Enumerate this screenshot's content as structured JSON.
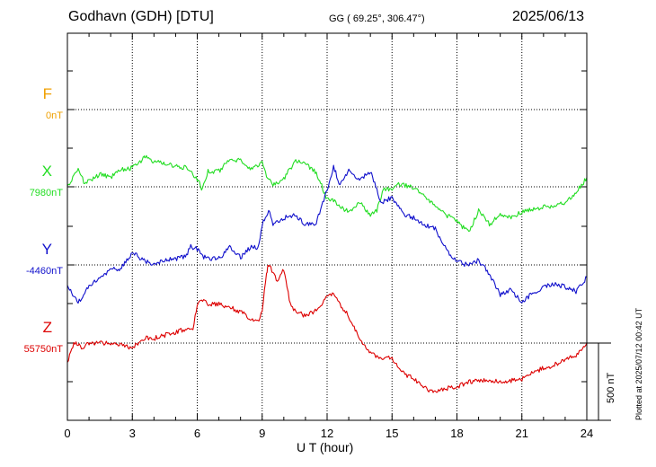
{
  "header": {
    "station": "Godhavn (GDH)  [DTU]",
    "coords": "GG ( 69.25°, 306.47°)",
    "date": "2025/06/13"
  },
  "footer": {
    "plotted": "Plotted at 2025/07/12 00:42 UT"
  },
  "chart_data": {
    "type": "line",
    "xlabel": "U T (hour)",
    "xlim": [
      0,
      24
    ],
    "xticks": [
      0,
      3,
      6,
      9,
      12,
      15,
      18,
      21,
      24
    ],
    "scale_label": "500 nT",
    "scale_nT": 500,
    "series": [
      {
        "name": "F",
        "baseline_label": "0nT",
        "baseline_nT": 0,
        "color": "#f0a000",
        "x": [],
        "y": []
      },
      {
        "name": "X",
        "baseline_label": "7980nT",
        "baseline_nT": 7980,
        "color": "#22dd22",
        "x": [
          0,
          0.5,
          0.8,
          1.5,
          2.0,
          2.5,
          3.0,
          3.5,
          3.6,
          4.0,
          4.5,
          5.0,
          5.5,
          5.7,
          6.0,
          6.2,
          6.5,
          7.0,
          7.5,
          8.0,
          8.5,
          9.0,
          9.2,
          9.5,
          10.0,
          10.5,
          11.0,
          11.5,
          12.0,
          12.3,
          12.6,
          13.0,
          13.5,
          14.0,
          14.3,
          14.6,
          15.0,
          15.3,
          15.6,
          16.0,
          16.5,
          17.0,
          17.5,
          18.0,
          18.3,
          18.6,
          19.0,
          19.5,
          20.0,
          20.5,
          21.0,
          21.5,
          22.0,
          22.5,
          23.0,
          23.5,
          24.0
        ],
        "y": [
          7980,
          8085,
          8000,
          8060,
          8040,
          8090,
          8100,
          8160,
          8170,
          8140,
          8130,
          8110,
          8100,
          8080,
          8030,
          7970,
          8080,
          8080,
          8150,
          8150,
          8090,
          8140,
          8050,
          7990,
          8030,
          8140,
          8130,
          8070,
          7900,
          7890,
          7850,
          7820,
          7880,
          7800,
          7830,
          7970,
          7960,
          8000,
          7990,
          7970,
          7930,
          7850,
          7800,
          7760,
          7720,
          7700,
          7830,
          7740,
          7800,
          7780,
          7820,
          7840,
          7850,
          7860,
          7880,
          7940,
          8040
        ]
      },
      {
        "name": "Y",
        "baseline_label": "-4460nT",
        "baseline_nT": -4460,
        "color": "#1010cc",
        "x": [
          0,
          0.5,
          1.0,
          1.5,
          2.0,
          2.5,
          3.0,
          3.5,
          4.0,
          4.5,
          5.0,
          5.5,
          5.7,
          6.0,
          6.2,
          6.5,
          7.0,
          7.5,
          8.0,
          8.5,
          8.8,
          9.0,
          9.3,
          9.5,
          10.0,
          10.5,
          11.0,
          11.5,
          12.0,
          12.3,
          12.6,
          13.0,
          13.5,
          14.0,
          14.5,
          15.0,
          15.5,
          16.0,
          16.5,
          17.0,
          17.5,
          18.0,
          18.5,
          19.0,
          19.5,
          20.0,
          20.5,
          21.0,
          21.5,
          22.0,
          22.5,
          23.0,
          23.5,
          24.0
        ],
        "y": [
          -4600,
          -4700,
          -4600,
          -4540,
          -4490,
          -4480,
          -4380,
          -4430,
          -4460,
          -4430,
          -4420,
          -4400,
          -4340,
          -4360,
          -4400,
          -4420,
          -4420,
          -4350,
          -4410,
          -4340,
          -4360,
          -4200,
          -4110,
          -4200,
          -4160,
          -4140,
          -4200,
          -4190,
          -3980,
          -3830,
          -3950,
          -3860,
          -3920,
          -3860,
          -4060,
          -4030,
          -4130,
          -4160,
          -4200,
          -4230,
          -4360,
          -4440,
          -4460,
          -4430,
          -4520,
          -4650,
          -4620,
          -4700,
          -4640,
          -4600,
          -4580,
          -4600,
          -4630,
          -4540
        ]
      },
      {
        "name": "Z",
        "baseline_label": "55750nT",
        "baseline_nT": 55750,
        "color": "#dd0000",
        "x": [
          0,
          0.3,
          0.7,
          1.0,
          1.5,
          2.0,
          2.5,
          3.0,
          3.5,
          4.0,
          4.5,
          5.0,
          5.5,
          5.8,
          6.0,
          6.2,
          6.5,
          7.0,
          7.5,
          8.0,
          8.5,
          8.8,
          9.0,
          9.2,
          9.3,
          9.5,
          9.7,
          10.0,
          10.3,
          10.5,
          11.0,
          11.5,
          12.0,
          12.3,
          12.6,
          13.0,
          13.5,
          14.0,
          14.5,
          15.0,
          15.5,
          16.0,
          16.5,
          17.0,
          17.5,
          18.0,
          18.5,
          19.0,
          19.5,
          20.0,
          20.5,
          21.0,
          21.5,
          22.0,
          22.5,
          23.0,
          23.5,
          24.0
        ],
        "y": [
          55620,
          55750,
          55720,
          55750,
          55750,
          55750,
          55740,
          55720,
          55780,
          55780,
          55800,
          55820,
          55840,
          55850,
          55980,
          56030,
          56000,
          56000,
          55980,
          55950,
          55900,
          55890,
          55950,
          56200,
          56250,
          56200,
          56150,
          56220,
          56000,
          55960,
          55920,
          55960,
          56050,
          56060,
          56000,
          55920,
          55780,
          55680,
          55660,
          55650,
          55560,
          55520,
          55460,
          55440,
          55460,
          55470,
          55500,
          55510,
          55510,
          55500,
          55510,
          55520,
          55560,
          55590,
          55610,
          55640,
          55670,
          55750
        ]
      }
    ]
  }
}
